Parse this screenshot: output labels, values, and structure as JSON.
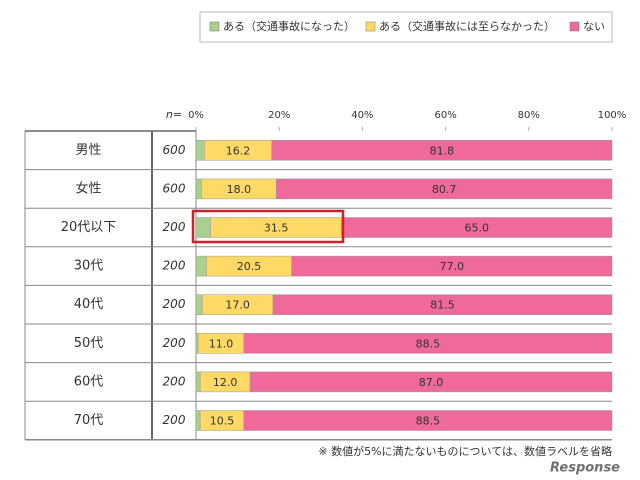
{
  "chart_data": {
    "type": "stacked-bar",
    "categories": [
      "男性",
      "女性",
      "20代以下",
      "30代",
      "40代",
      "50代",
      "60代",
      "70代"
    ],
    "n": {
      "label": "n=",
      "values": [
        600,
        600,
        200,
        200,
        200,
        200,
        200,
        200
      ]
    },
    "series": [
      {
        "name": "ある（交通事故になった）",
        "color": "#a9d08e",
        "values": [
          2.0,
          1.3,
          3.5,
          2.5,
          1.5,
          0.5,
          1.0,
          1.0
        ]
      },
      {
        "name": "ある（交通事故には至らなかった）",
        "color": "#ffd966",
        "values": [
          16.2,
          18.0,
          31.5,
          20.5,
          17.0,
          11.0,
          12.0,
          10.5
        ],
        "value_labels": [
          "16.2",
          "18.0",
          "31.5",
          "20.5",
          "17.0",
          "11.0",
          "12.0",
          "10.5"
        ]
      },
      {
        "name": "ない",
        "color": "#f0699b",
        "values": [
          81.8,
          80.7,
          65.0,
          77.0,
          81.5,
          88.5,
          87.0,
          88.5
        ],
        "value_labels": [
          "81.8",
          "80.7",
          "65.0",
          "77.0",
          "81.5",
          "88.5",
          "87.0",
          "88.5"
        ]
      }
    ],
    "xlim": [
      0,
      100
    ],
    "xticks": [
      {
        "value": 0,
        "label": "0%"
      },
      {
        "value": 20,
        "label": "20%"
      },
      {
        "value": 40,
        "label": "40%"
      },
      {
        "value": 60,
        "label": "60%"
      },
      {
        "value": 80,
        "label": "80%"
      },
      {
        "value": 100,
        "label": "100%"
      }
    ],
    "note": "※  数値が5%に満たないものについては、数値ラベルを省略",
    "watermark": "Response"
  }
}
